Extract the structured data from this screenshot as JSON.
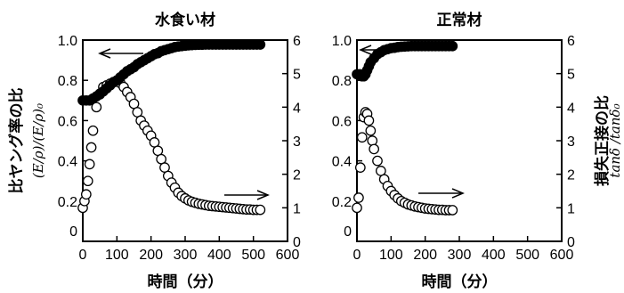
{
  "figure": {
    "ylabel_left_jp": "比ヤング率の比",
    "ylabel_left_math": "(E/ρ)/(E/ρ)₀",
    "ylabel_right_jp": "損失正接の比",
    "ylabel_right_math": "tanδ /tanδ₀"
  },
  "chart_data": [
    {
      "type": "scatter",
      "title": "水食い材",
      "xlabel": "時間（分）",
      "xlim": [
        0,
        600
      ],
      "xticks": [
        "0",
        "100",
        "200",
        "300",
        "400",
        "500",
        "600"
      ],
      "ylim_left": [
        0,
        1.0
      ],
      "yticks_left": [
        "0",
        "0.2",
        "0.4",
        "0.6",
        "0.8",
        "1.0"
      ],
      "ylim_right": [
        0,
        6
      ],
      "yticks_right": [
        "0",
        "1",
        "2",
        "3",
        "4",
        "5",
        "6"
      ],
      "series": [
        {
          "axis": "left",
          "marker": "filled-circle",
          "x": [
            0,
            10,
            20,
            30,
            40,
            50,
            60,
            70,
            80,
            90,
            100,
            110,
            120,
            130,
            140,
            150,
            160,
            170,
            180,
            190,
            200,
            210,
            220,
            230,
            240,
            250,
            260,
            270,
            280,
            290,
            300,
            310,
            320,
            330,
            340,
            350,
            360,
            370,
            380,
            390,
            400,
            410,
            420,
            430,
            440,
            450,
            460,
            470,
            480,
            490,
            500,
            510,
            520
          ],
          "values": [
            0.7,
            0.7,
            0.7,
            0.71,
            0.72,
            0.73,
            0.745,
            0.76,
            0.775,
            0.79,
            0.8,
            0.815,
            0.83,
            0.845,
            0.855,
            0.865,
            0.88,
            0.89,
            0.9,
            0.91,
            0.92,
            0.93,
            0.935,
            0.945,
            0.95,
            0.955,
            0.96,
            0.965,
            0.968,
            0.97,
            0.972,
            0.974,
            0.975,
            0.976,
            0.977,
            0.977,
            0.978,
            0.978,
            0.978,
            0.978,
            0.978,
            0.978,
            0.978,
            0.978,
            0.978,
            0.978,
            0.978,
            0.978,
            0.978,
            0.978,
            0.978,
            0.978,
            0.978
          ]
        },
        {
          "axis": "right",
          "marker": "open-circle",
          "x": [
            0,
            5,
            10,
            15,
            20,
            25,
            30,
            40,
            50,
            60,
            70,
            80,
            90,
            100,
            110,
            120,
            130,
            140,
            150,
            160,
            170,
            180,
            190,
            200,
            210,
            220,
            230,
            240,
            250,
            260,
            270,
            280,
            290,
            300,
            310,
            320,
            330,
            340,
            350,
            360,
            370,
            380,
            390,
            400,
            410,
            420,
            430,
            440,
            450,
            460,
            470,
            480,
            490,
            500,
            510,
            520
          ],
          "values": [
            1.0,
            1.2,
            1.4,
            1.8,
            2.3,
            2.8,
            3.3,
            4.0,
            4.4,
            4.6,
            4.65,
            4.7,
            4.75,
            4.78,
            4.72,
            4.6,
            4.45,
            4.3,
            4.1,
            3.85,
            3.6,
            3.45,
            3.3,
            3.15,
            2.95,
            2.7,
            2.45,
            2.2,
            1.95,
            1.75,
            1.6,
            1.45,
            1.35,
            1.28,
            1.22,
            1.18,
            1.15,
            1.12,
            1.1,
            1.08,
            1.06,
            1.05,
            1.04,
            1.03,
            1.02,
            1.01,
            1.0,
            0.99,
            0.98,
            0.97,
            0.96,
            0.95,
            0.95,
            0.94,
            0.94,
            0.94
          ]
        }
      ]
    },
    {
      "type": "scatter",
      "title": "正常材",
      "xlabel": "時間（分）",
      "xlim": [
        0,
        600
      ],
      "xticks": [
        "0",
        "100",
        "200",
        "300",
        "400",
        "500",
        "600"
      ],
      "ylim_left": [
        0,
        1.0
      ],
      "yticks_left": [
        "0",
        "0.2",
        "0.4",
        "0.6",
        "0.8",
        "1.0"
      ],
      "ylim_right": [
        0,
        6
      ],
      "yticks_right": [
        "0",
        "1",
        "2",
        "3",
        "4",
        "5",
        "6"
      ],
      "series": [
        {
          "axis": "left",
          "marker": "filled-circle",
          "x": [
            0,
            5,
            10,
            15,
            20,
            25,
            30,
            35,
            40,
            50,
            60,
            70,
            80,
            90,
            100,
            110,
            120,
            130,
            140,
            150,
            160,
            170,
            180,
            190,
            200,
            210,
            220,
            230,
            240,
            250,
            260,
            270,
            280
          ],
          "values": [
            0.83,
            0.83,
            0.83,
            0.82,
            0.82,
            0.83,
            0.85,
            0.87,
            0.89,
            0.91,
            0.93,
            0.94,
            0.95,
            0.955,
            0.96,
            0.962,
            0.965,
            0.967,
            0.968,
            0.969,
            0.97,
            0.97,
            0.97,
            0.97,
            0.97,
            0.97,
            0.97,
            0.97,
            0.97,
            0.97,
            0.97,
            0.97,
            0.97
          ]
        },
        {
          "axis": "right",
          "marker": "open-circle",
          "x": [
            0,
            5,
            10,
            15,
            20,
            25,
            30,
            35,
            40,
            45,
            50,
            60,
            70,
            80,
            90,
            100,
            110,
            120,
            130,
            140,
            150,
            160,
            170,
            180,
            190,
            200,
            210,
            220,
            230,
            240,
            250,
            260,
            270,
            280
          ],
          "values": [
            1.0,
            1.3,
            2.2,
            3.1,
            3.7,
            3.85,
            3.8,
            3.6,
            3.3,
            3.0,
            2.75,
            2.4,
            2.1,
            1.85,
            1.65,
            1.5,
            1.38,
            1.28,
            1.2,
            1.15,
            1.1,
            1.07,
            1.04,
            1.02,
            1.0,
            0.98,
            0.97,
            0.96,
            0.95,
            0.94,
            0.94,
            0.93,
            0.93,
            0.93
          ]
        }
      ]
    }
  ]
}
